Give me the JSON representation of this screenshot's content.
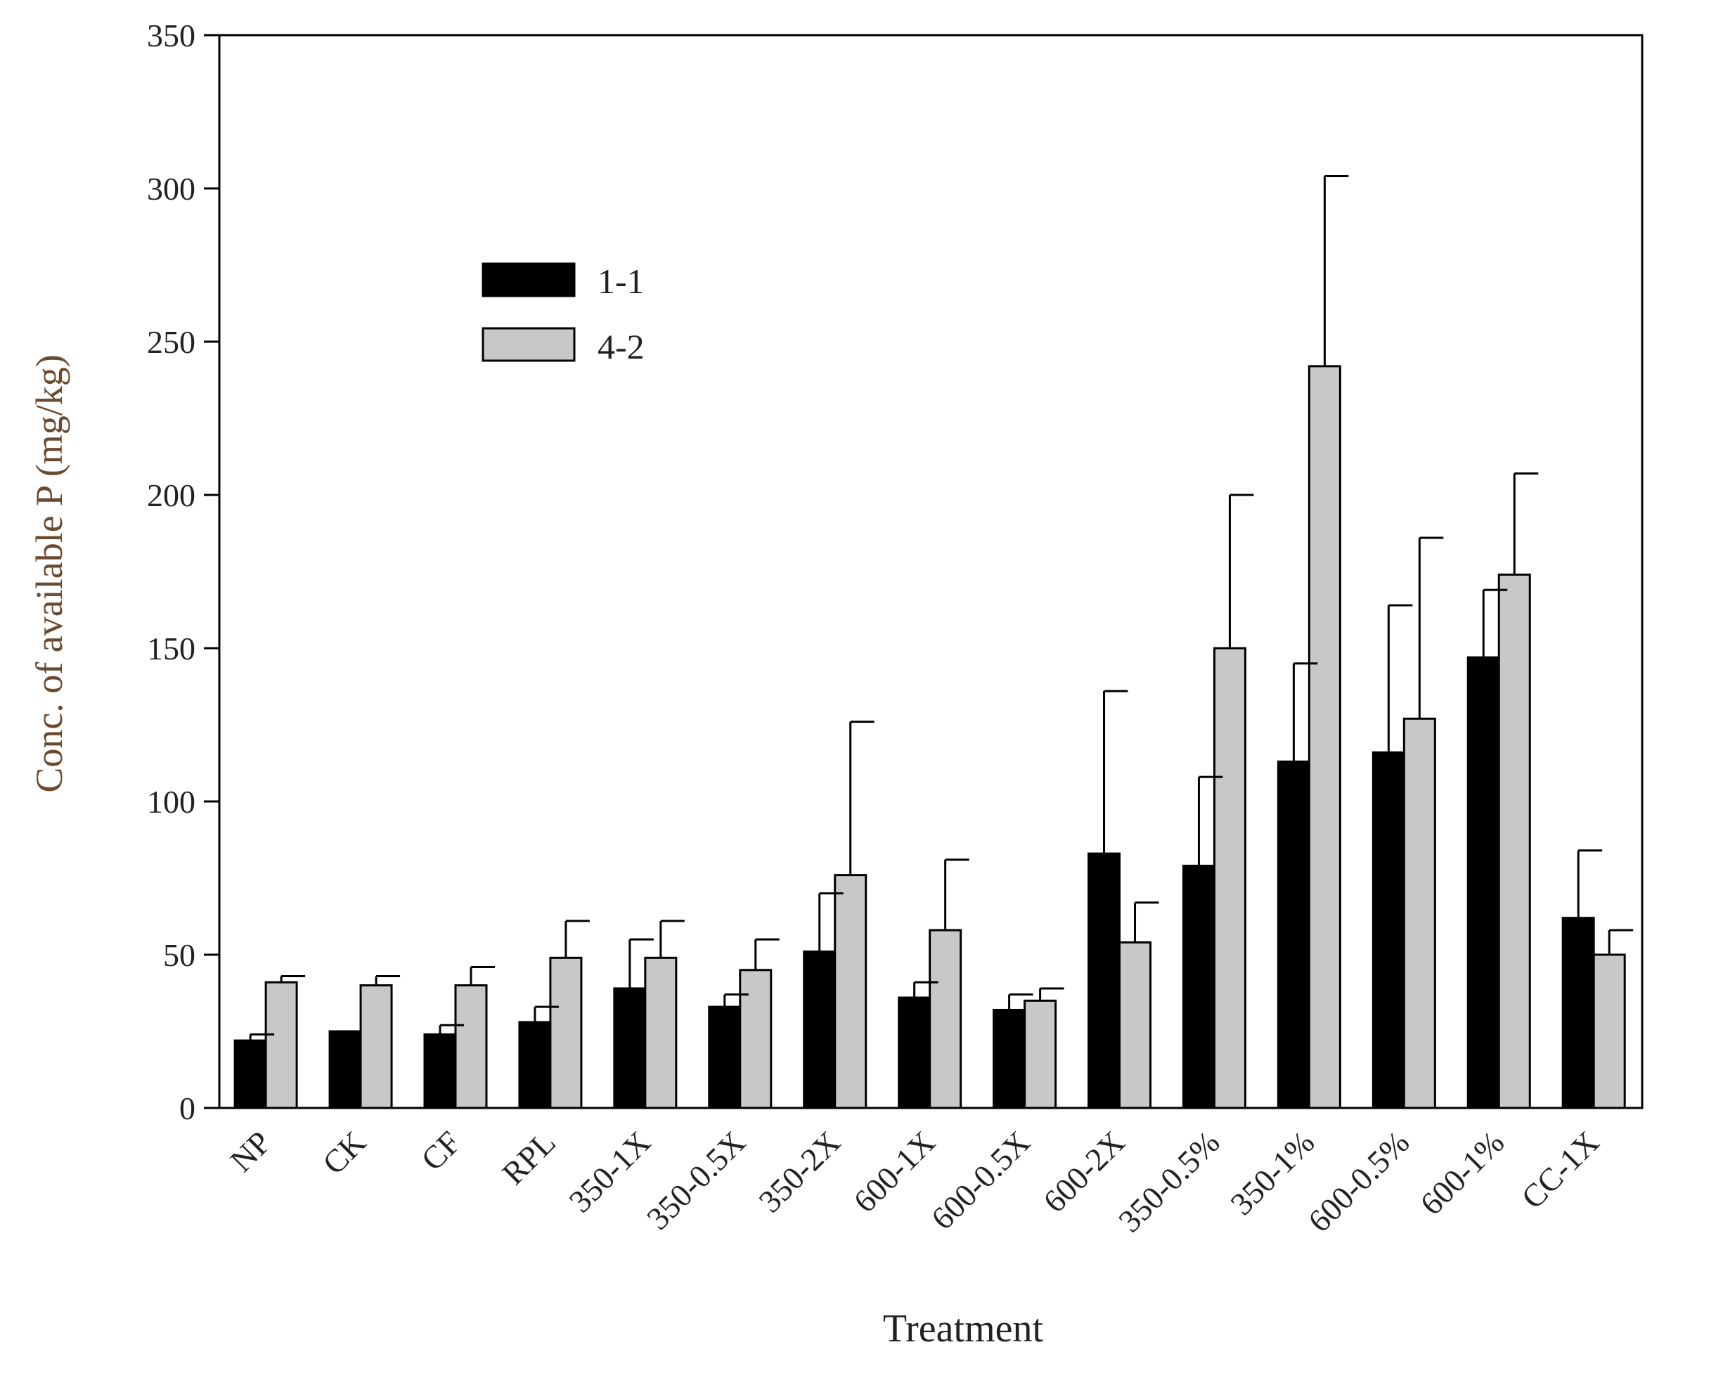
{
  "chart_data": {
    "type": "bar",
    "title": "",
    "xlabel": "Treatment",
    "ylabel": "Conc. of available P (mg/kg)",
    "ylim": [
      0,
      350
    ],
    "yticks": [
      0,
      50,
      100,
      150,
      200,
      250,
      300,
      350
    ],
    "ytick_labels": [
      "0",
      "50",
      "100",
      "150",
      "200",
      "250",
      "300",
      "350"
    ],
    "grid": false,
    "legend_position": "upper-left inside",
    "categories": [
      "NP",
      "CK",
      "CF",
      "RPL",
      "350-1X",
      "350-0.5X",
      "350-2X",
      "600-1X",
      "600-0.5X",
      "600-2X",
      "350-0.5%",
      "350-1%",
      "600-0.5%",
      "600-1%",
      "CC-1X"
    ],
    "series": [
      {
        "name": "1-1",
        "color": "#000000",
        "values": [
          22,
          25,
          24,
          28,
          39,
          33,
          51,
          36,
          32,
          83,
          79,
          113,
          116,
          147,
          62
        ],
        "errors": [
          2,
          0,
          3,
          5,
          16,
          4,
          19,
          5,
          5,
          53,
          29,
          32,
          48,
          22,
          22
        ]
      },
      {
        "name": "4-2",
        "color": "#c8c8c8",
        "values": [
          41,
          40,
          40,
          49,
          49,
          45,
          76,
          58,
          35,
          54,
          150,
          242,
          127,
          174,
          50
        ],
        "errors": [
          2,
          3,
          6,
          12,
          12,
          10,
          50,
          23,
          4,
          13,
          50,
          62,
          59,
          33,
          8
        ]
      }
    ]
  }
}
